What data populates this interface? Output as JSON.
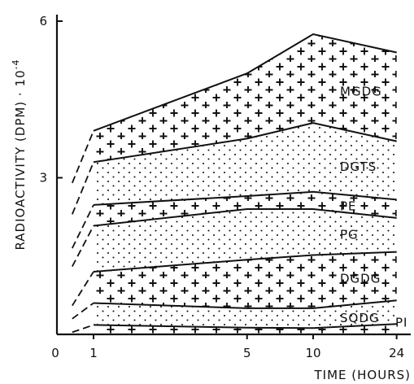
{
  "chart_data": {
    "type": "area",
    "subtype": "stacked",
    "xlabel": "TIME (HOURS)",
    "ylabel": "RADIOACTIVITY (DPM) · 10",
    "ylabel_exponent": "-4",
    "x_scale": "log",
    "x_ticks": [
      "0",
      "1",
      "5",
      "10",
      "24"
    ],
    "y_ticks": [
      "3",
      "6"
    ],
    "ylim": [
      0,
      6.4
    ],
    "x": [
      1,
      5,
      10,
      24
    ],
    "boundaries": [
      {
        "layer": "PI",
        "values": [
          0.18,
          0.13,
          0.12,
          0.2
        ]
      },
      {
        "layer": "SQDG",
        "values": [
          0.6,
          0.5,
          0.5,
          0.65
        ]
      },
      {
        "layer": "DGDG",
        "values": [
          1.2,
          1.43,
          1.52,
          1.58
        ]
      },
      {
        "layer": "PG",
        "values": [
          2.08,
          2.4,
          2.4,
          2.23
        ]
      },
      {
        "layer": "PE",
        "values": [
          2.48,
          2.65,
          2.73,
          2.58
        ]
      },
      {
        "layer": "DGTS",
        "values": [
          3.3,
          3.75,
          4.05,
          3.7
        ]
      },
      {
        "layer": "MGDG",
        "values": [
          3.9,
          5.0,
          5.75,
          5.4
        ]
      }
    ],
    "early_extrapolation": [
      {
        "x": [
          0.8,
          1
        ],
        "values": [
          0.04,
          0.18
        ]
      },
      {
        "x": [
          0.8,
          1
        ],
        "values": [
          0.3,
          0.6
        ]
      },
      {
        "x": [
          0.8,
          1
        ],
        "values": [
          0.55,
          1.2
        ]
      },
      {
        "x": [
          0.8,
          1
        ],
        "values": [
          1.3,
          2.08
        ]
      },
      {
        "x": [
          0.8,
          1
        ],
        "values": [
          1.65,
          2.48
        ]
      },
      {
        "x": [
          0.8,
          1
        ],
        "values": [
          2.3,
          3.3
        ]
      },
      {
        "x": [
          0.8,
          1
        ],
        "values": [
          2.9,
          3.9
        ]
      }
    ],
    "fill_patterns": [
      "cross",
      "dots",
      "cross",
      "dots",
      "cross",
      "dots",
      "cross"
    ],
    "layers": [
      "PI",
      "SQDG",
      "DGDG",
      "PG",
      "PE",
      "DGTS",
      "MGDG"
    ],
    "grid": false,
    "legend": "none"
  }
}
